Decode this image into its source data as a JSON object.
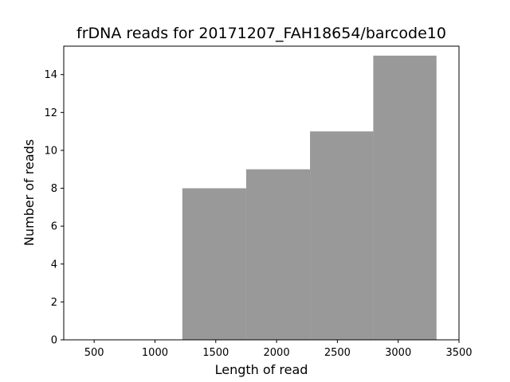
{
  "chart_data": {
    "type": "bar",
    "title": "frDNA reads for 20171207_FAH18654/barcode10",
    "xlabel": "Length of read",
    "ylabel": "Number of reads",
    "xlim": [
      250,
      3500
    ],
    "ylim": [
      0,
      15.5
    ],
    "xticks": [
      500,
      1000,
      1500,
      2000,
      2500,
      3000,
      3500
    ],
    "yticks": [
      0,
      2,
      4,
      6,
      8,
      10,
      12,
      14
    ],
    "bins": [
      {
        "x0": 1225,
        "x1": 1750,
        "count": 8
      },
      {
        "x0": 1750,
        "x1": 2275,
        "count": 9
      },
      {
        "x0": 2275,
        "x1": 2795,
        "count": 11
      },
      {
        "x0": 2795,
        "x1": 3315,
        "count": 15
      }
    ],
    "bar_color": "#999999",
    "grid": false
  }
}
